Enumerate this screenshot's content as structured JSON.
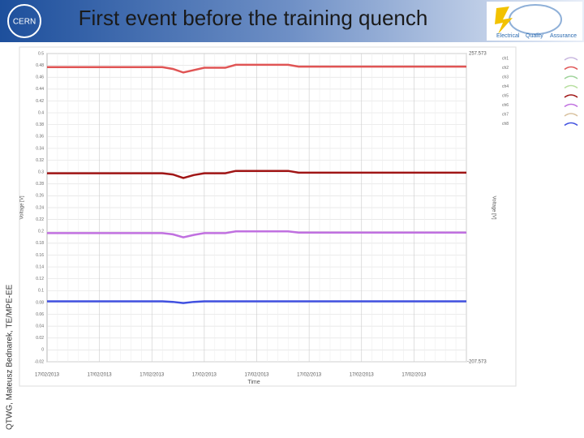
{
  "slide": {
    "title": "First event before the training quench",
    "side_note": "QTWG, Mateusz Bednarek, TE/MPE-EE",
    "left_logo": "CERN",
    "right_logo": [
      "Electrical",
      "Quality",
      "Assurance"
    ]
  },
  "chart_data": {
    "type": "line",
    "y_label": "Voltage [V]",
    "y2_label": "Voltage [V]",
    "x_label": "Time",
    "y2_top": "257.573",
    "y2_bottom": "-207.573",
    "categories": [
      "17/02/2013",
      null,
      null,
      null,
      null,
      "17/02/2013",
      null,
      null,
      null,
      null,
      "17/02/2013",
      null,
      null,
      null,
      null,
      "17/02/2013",
      null,
      null,
      null,
      null,
      "17/02/2013",
      null,
      null,
      null,
      null,
      "17/02/2013",
      null,
      null,
      null,
      null,
      "17/02/2013",
      null,
      null,
      null,
      null,
      "17/02/2013",
      null,
      null,
      null,
      null,
      null
    ],
    "ylim": [
      -0.02,
      0.5
    ],
    "yticks": [
      -0.02,
      0,
      0.02,
      0.04,
      0.06,
      0.08,
      0.1,
      0.12,
      0.14,
      0.16,
      0.18,
      0.2,
      0.22,
      0.24,
      0.26,
      0.28,
      0.3,
      0.32,
      0.34,
      0.36,
      0.38,
      0.4,
      0.42,
      0.44,
      0.46,
      0.48,
      0.5
    ],
    "grid": true,
    "series": [
      {
        "name": "ch1",
        "color": "#c9b8e0",
        "values": [
          null,
          null,
          null,
          null,
          null,
          null,
          null,
          null,
          null,
          null,
          null,
          null,
          null,
          null,
          null,
          null,
          null,
          null,
          null,
          null,
          null,
          null,
          null,
          null,
          null,
          null,
          null,
          null,
          null,
          null,
          null,
          null,
          null,
          null,
          null,
          null,
          null,
          null,
          null,
          null,
          null
        ]
      },
      {
        "name": "ch2",
        "color": "#e05555",
        "values": [
          0.477,
          0.477,
          0.477,
          0.477,
          0.477,
          0.477,
          0.477,
          0.477,
          0.477,
          0.477,
          0.477,
          0.477,
          0.474,
          0.468,
          0.472,
          0.476,
          0.476,
          0.476,
          0.481,
          0.481,
          0.481,
          0.481,
          0.481,
          0.481,
          0.478,
          0.478,
          0.478,
          0.478,
          0.478,
          0.478,
          0.478,
          0.478,
          0.478,
          0.478,
          0.478,
          0.478,
          0.478,
          0.478,
          0.478,
          0.478,
          0.478
        ]
      },
      {
        "name": "ch3",
        "color": "#9fd39a",
        "values": [
          null,
          null,
          null,
          null,
          null,
          null,
          null,
          null,
          null,
          null,
          null,
          null,
          null,
          null,
          null,
          null,
          null,
          null,
          null,
          null,
          null,
          null,
          null,
          null,
          null,
          null,
          null,
          null,
          null,
          null,
          null,
          null,
          null,
          null,
          null,
          null,
          null,
          null,
          null,
          null,
          null
        ]
      },
      {
        "name": "ch4",
        "color": "#b8dfa0",
        "values": [
          null,
          null,
          null,
          null,
          null,
          null,
          null,
          null,
          null,
          null,
          null,
          null,
          null,
          null,
          null,
          null,
          null,
          null,
          null,
          null,
          null,
          null,
          null,
          null,
          null,
          null,
          null,
          null,
          null,
          null,
          null,
          null,
          null,
          null,
          null,
          null,
          null,
          null,
          null,
          null,
          null
        ]
      },
      {
        "name": "ch5",
        "color": "#a01515",
        "values": [
          0.298,
          0.298,
          0.298,
          0.298,
          0.298,
          0.298,
          0.298,
          0.298,
          0.298,
          0.298,
          0.298,
          0.298,
          0.296,
          0.29,
          0.295,
          0.298,
          0.298,
          0.298,
          0.302,
          0.302,
          0.302,
          0.302,
          0.302,
          0.302,
          0.299,
          0.299,
          0.299,
          0.299,
          0.299,
          0.299,
          0.299,
          0.299,
          0.299,
          0.299,
          0.299,
          0.299,
          0.299,
          0.299,
          0.299,
          0.299,
          0.299
        ]
      },
      {
        "name": "ch6",
        "color": "#c070e0",
        "values": [
          0.197,
          0.197,
          0.197,
          0.197,
          0.197,
          0.197,
          0.197,
          0.197,
          0.197,
          0.197,
          0.197,
          0.197,
          0.195,
          0.19,
          0.194,
          0.197,
          0.197,
          0.197,
          0.2,
          0.2,
          0.2,
          0.2,
          0.2,
          0.2,
          0.198,
          0.198,
          0.198,
          0.198,
          0.198,
          0.198,
          0.198,
          0.198,
          0.198,
          0.198,
          0.198,
          0.198,
          0.198,
          0.198,
          0.198,
          0.198,
          0.198
        ]
      },
      {
        "name": "ch7",
        "color": "#d9c2a0",
        "values": [
          null,
          null,
          null,
          null,
          null,
          null,
          null,
          null,
          null,
          null,
          null,
          null,
          null,
          null,
          null,
          null,
          null,
          null,
          null,
          null,
          null,
          null,
          null,
          null,
          null,
          null,
          null,
          null,
          null,
          null,
          null,
          null,
          null,
          null,
          null,
          null,
          null,
          null,
          null,
          null,
          null
        ]
      },
      {
        "name": "ch8",
        "color": "#4050e0",
        "values": [
          0.082,
          0.082,
          0.082,
          0.082,
          0.082,
          0.082,
          0.082,
          0.082,
          0.082,
          0.082,
          0.082,
          0.082,
          0.081,
          0.079,
          0.081,
          0.082,
          0.082,
          0.082,
          0.082,
          0.082,
          0.082,
          0.082,
          0.082,
          0.082,
          0.082,
          0.082,
          0.082,
          0.082,
          0.082,
          0.082,
          0.082,
          0.082,
          0.082,
          0.082,
          0.082,
          0.082,
          0.082,
          0.082,
          0.082,
          0.082,
          0.082
        ]
      }
    ]
  }
}
